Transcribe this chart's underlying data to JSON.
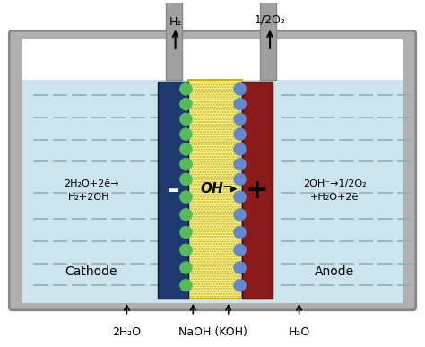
{
  "fig_width": 4.74,
  "fig_height": 3.87,
  "dpi": 100,
  "bg_color": "#ffffff",
  "tank_outer_color": "#b0b0b0",
  "tank_inner_color": "#cce4f0",
  "tank_water_color": "#b8d8ea",
  "cathode_color": "#1e3a6e",
  "anode_color": "#8b1a1a",
  "membrane_color": "#f5f0a0",
  "pipe_color": "#a0a0a0",
  "green_bubble_color": "#55bb55",
  "blue_bubble_color": "#6688cc",
  "dashes_color": "#99aabb",
  "cathode_label": "-",
  "anode_label": "+",
  "oh_label": "OH⁻",
  "cathode_reaction_line1": "2H₂O+2ē→",
  "cathode_reaction_line2": "H₂+2OH⁻",
  "anode_reaction_line1": "2OH⁻→1/2O₂",
  "anode_reaction_line2": "+H₂O+2ē",
  "cathode_text": "Cathode",
  "anode_text": "Anode",
  "h2_label": "H₂",
  "o2_label": "1/2O₂",
  "naoh_label": "NaOH (KOH)",
  "water_in_label": "2H₂O",
  "water_out_label": "H₂O",
  "font_size": 8,
  "label_font_size": 9,
  "reaction_font_size": 8
}
